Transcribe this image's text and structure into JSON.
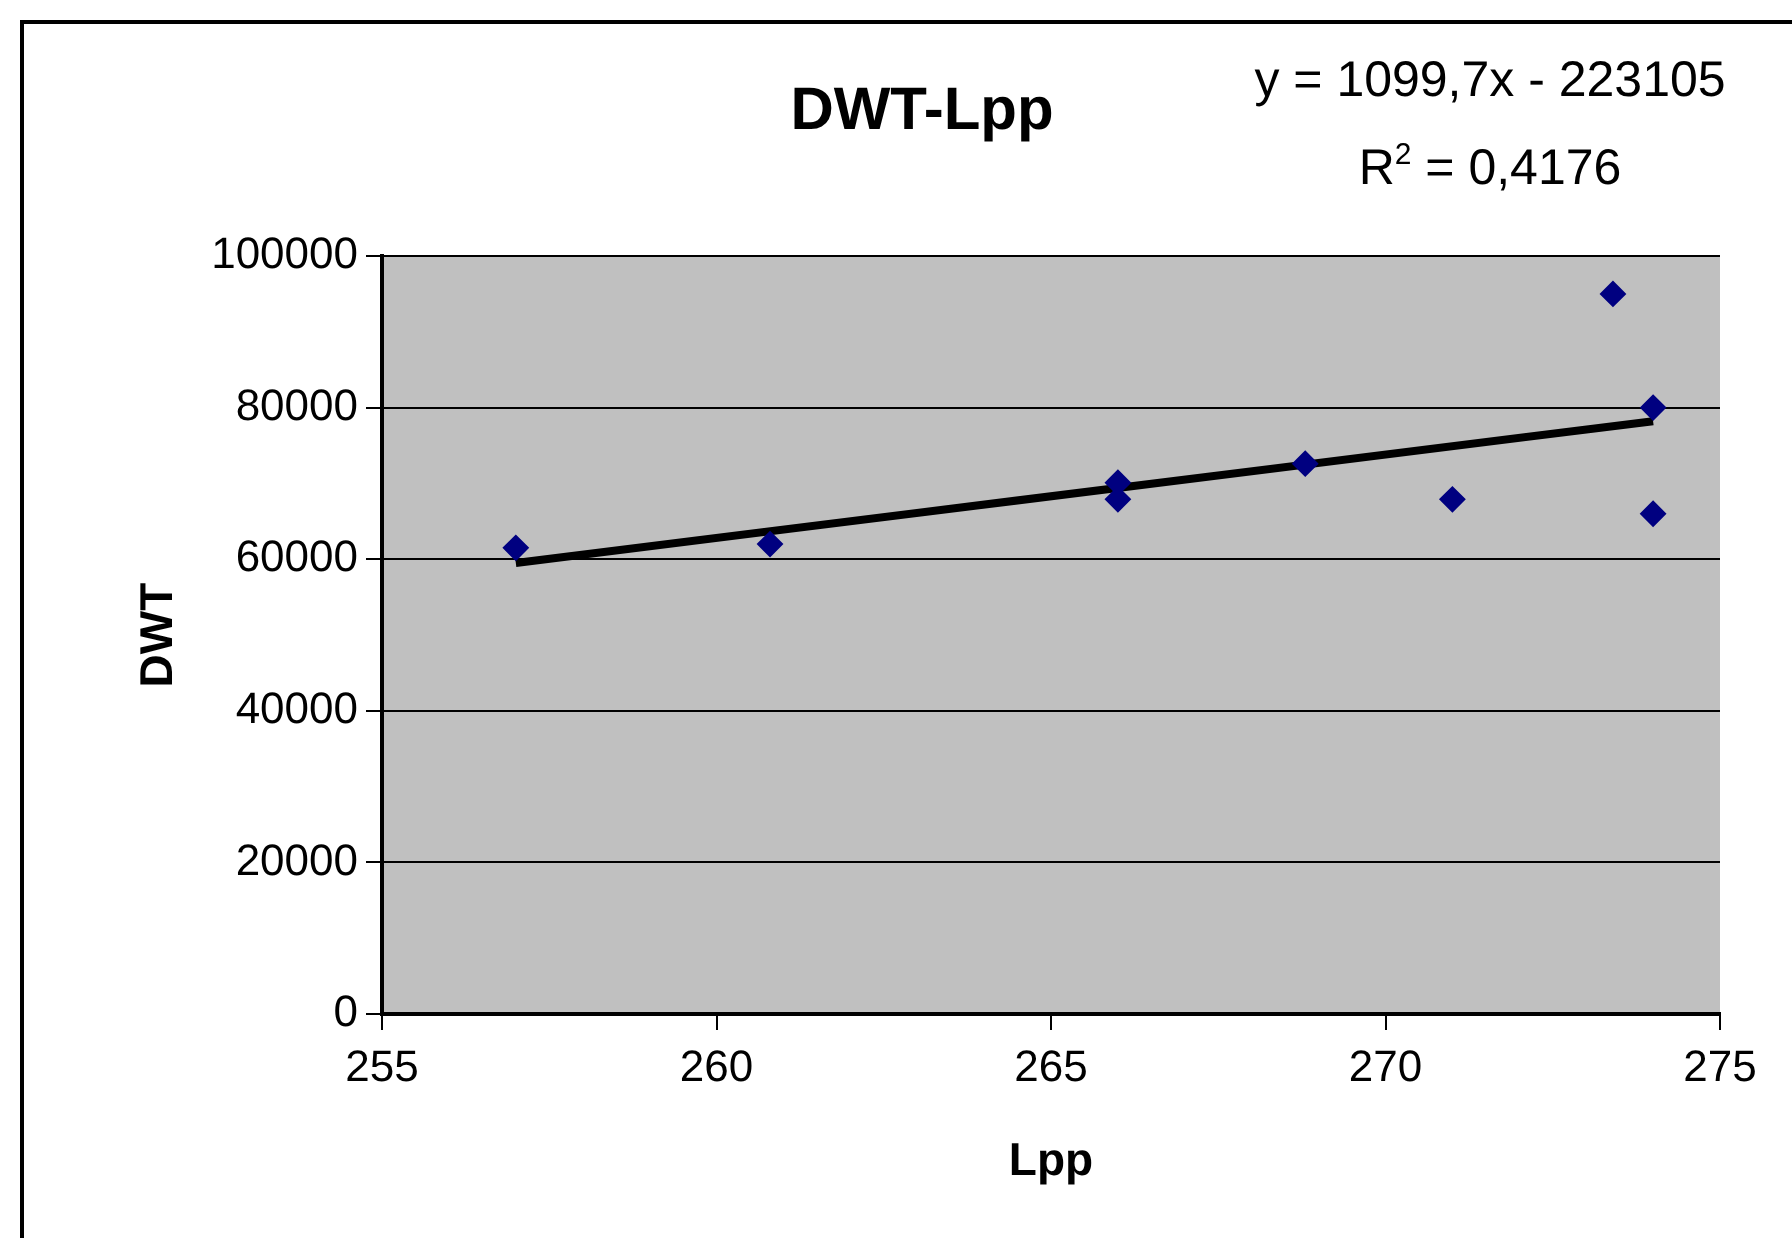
{
  "chart_data": {
    "type": "scatter",
    "title": "DWT-Lpp",
    "xlabel": "Lpp",
    "ylabel": "DWT",
    "annotations": [
      "y = 1099,7x - 223105",
      "R$^{2}$ = 0,4176"
    ],
    "series": [
      {
        "color": "#000080",
        "marker": "diamond",
        "x": [
          257,
          260.8,
          266,
          266,
          268.8,
          271,
          273.4,
          274,
          274
        ],
        "values": [
          61500,
          62000,
          70100,
          67900,
          72600,
          67900,
          95000,
          80000,
          66000
        ]
      },
      {
        "type": "line",
        "color": "#000000",
        "marker": "none",
        "line_style": "solid",
        "x": [
          257,
          274
        ],
        "values": [
          59500,
          78200
        ]
      }
    ],
    "xlim": [
      255,
      275
    ],
    "xticks": [
      255,
      260,
      265,
      270,
      275
    ],
    "ylim": [
      0,
      100000
    ],
    "yticks": [
      0,
      20000,
      40000,
      60000,
      80000,
      100000
    ],
    "grid": "y",
    "legend": false
  }
}
